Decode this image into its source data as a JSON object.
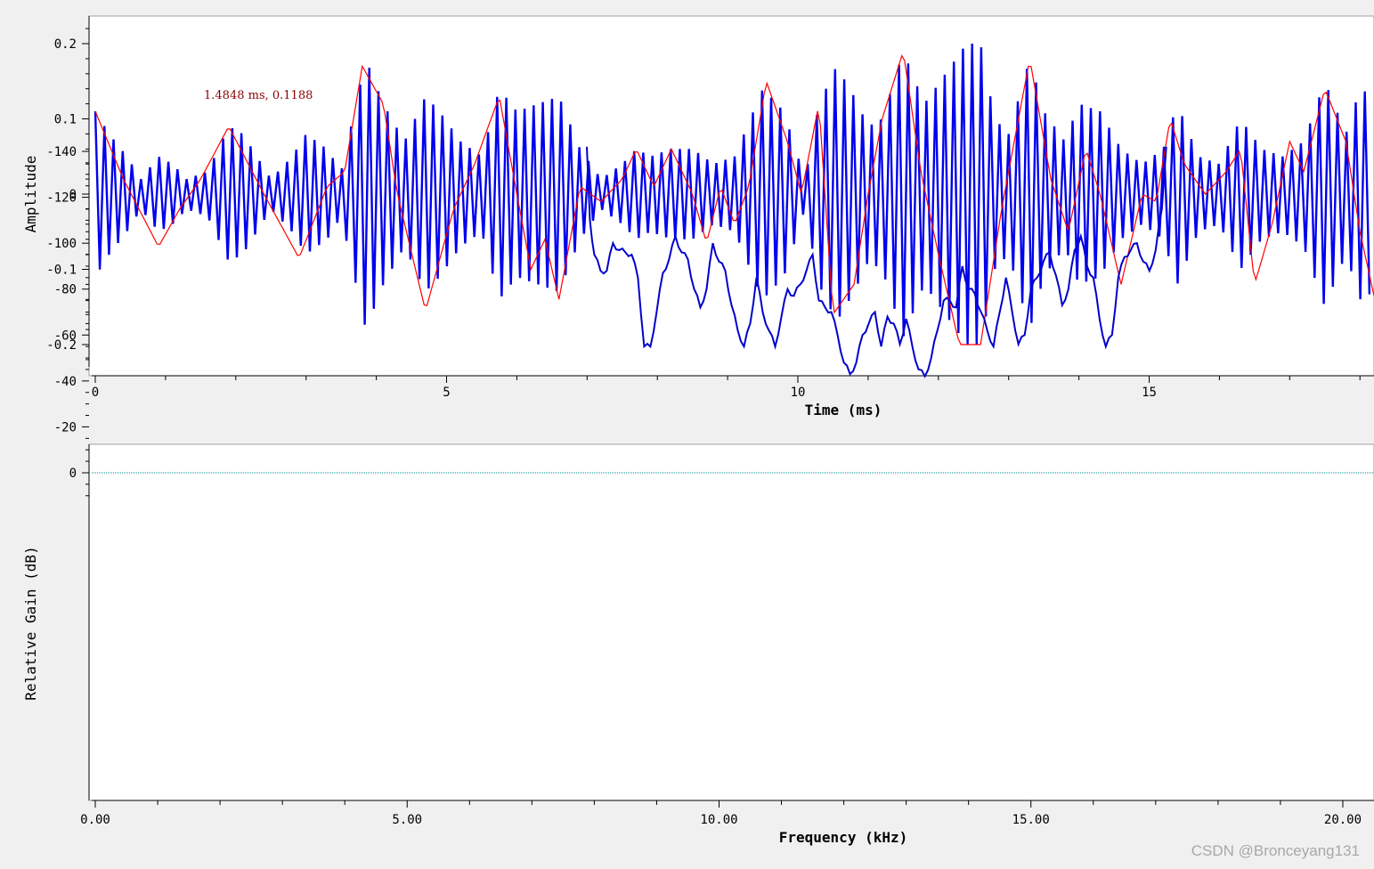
{
  "chart_data": [
    {
      "type": "line",
      "xlabel": "Time (ms)",
      "ylabel": "Amplitude",
      "xlim": [
        0,
        18.2
      ],
      "ylim": [
        -0.235,
        0.235
      ],
      "x_ticks": [
        0,
        5,
        10,
        15
      ],
      "x_tick_labels": [
        "0",
        "5",
        "10",
        "15"
      ],
      "y_ticks": [
        0.2,
        0.1,
        0,
        -0.1,
        -0.2
      ],
      "y_tick_labels": [
        "0.2",
        "0.1",
        "0",
        "-0.1",
        "-0.2"
      ],
      "grid": false,
      "marker_label": "1.4848 ms, 0.1188",
      "series": [
        {
          "color": "#0000ee",
          "carrier_period_ms": 0.13,
          "envelope_ms": [
            [
              0.0,
              0.11
            ],
            [
              0.2,
              0.08
            ],
            [
              0.45,
              0.05
            ],
            [
              0.65,
              0.02
            ],
            [
              0.9,
              0.05
            ],
            [
              1.1,
              0.04
            ],
            [
              1.3,
              0.02
            ],
            [
              1.6,
              0.03
            ],
            [
              1.9,
              0.09
            ],
            [
              2.1,
              0.08
            ],
            [
              2.5,
              0.02
            ],
            [
              2.8,
              0.05
            ],
            [
              3.0,
              0.08
            ],
            [
              3.3,
              0.06
            ],
            [
              3.5,
              0.03
            ],
            [
              3.85,
              0.18
            ],
            [
              4.1,
              0.12
            ],
            [
              4.4,
              0.07
            ],
            [
              4.7,
              0.13
            ],
            [
              4.9,
              0.11
            ],
            [
              5.2,
              0.07
            ],
            [
              5.5,
              0.05
            ],
            [
              5.75,
              0.14
            ],
            [
              6.0,
              0.11
            ],
            [
              6.3,
              0.12
            ],
            [
              6.6,
              0.13
            ],
            [
              6.9,
              0.06
            ],
            [
              7.2,
              0.02
            ],
            [
              7.5,
              0.04
            ],
            [
              7.7,
              0.06
            ],
            [
              7.9,
              0.05
            ],
            [
              8.2,
              0.06
            ],
            [
              8.5,
              0.06
            ],
            [
              8.8,
              0.04
            ],
            [
              9.1,
              0.05
            ],
            [
              9.5,
              0.14
            ],
            [
              9.8,
              0.11
            ],
            [
              10.1,
              0.02
            ],
            [
              10.3,
              0.12
            ],
            [
              10.55,
              0.17
            ],
            [
              10.8,
              0.13
            ],
            [
              11.0,
              0.09
            ],
            [
              11.2,
              0.1
            ],
            [
              11.5,
              0.19
            ],
            [
              11.8,
              0.12
            ],
            [
              12.1,
              0.16
            ],
            [
              12.4,
              0.2
            ],
            [
              12.6,
              0.2
            ],
            [
              12.8,
              0.1
            ],
            [
              13.0,
              0.08
            ],
            [
              13.3,
              0.18
            ],
            [
              13.5,
              0.11
            ],
            [
              13.8,
              0.07
            ],
            [
              14.0,
              0.12
            ],
            [
              14.3,
              0.11
            ],
            [
              14.6,
              0.06
            ],
            [
              14.9,
              0.04
            ],
            [
              15.2,
              0.06
            ],
            [
              15.4,
              0.12
            ],
            [
              15.7,
              0.05
            ],
            [
              16.0,
              0.04
            ],
            [
              16.3,
              0.1
            ],
            [
              16.6,
              0.06
            ],
            [
              16.9,
              0.05
            ],
            [
              17.2,
              0.07
            ],
            [
              17.5,
              0.15
            ],
            [
              17.8,
              0.08
            ],
            [
              18.0,
              0.14
            ],
            [
              18.2,
              0.13
            ]
          ]
        },
        {
          "color": "#ff0000",
          "upper_ms": [
            [
              0.0,
              0.11
            ],
            [
              0.4,
              0.02
            ],
            [
              0.9,
              -0.07
            ],
            [
              1.2,
              -0.02
            ],
            [
              1.5,
              0.02
            ],
            [
              1.9,
              0.09
            ],
            [
              2.4,
              0.0
            ],
            [
              2.9,
              -0.085
            ],
            [
              3.3,
              0.01
            ],
            [
              3.55,
              0.03
            ],
            [
              3.8,
              0.17
            ],
            [
              4.1,
              0.12
            ],
            [
              4.3,
              0.0
            ],
            [
              4.7,
              -0.155
            ],
            [
              5.1,
              -0.02
            ],
            [
              5.4,
              0.04
            ],
            [
              5.75,
              0.13
            ],
            [
              6.0,
              0.0
            ],
            [
              6.2,
              -0.1
            ],
            [
              6.4,
              -0.06
            ],
            [
              6.6,
              -0.14
            ],
            [
              6.9,
              0.01
            ],
            [
              7.2,
              -0.01
            ],
            [
              7.5,
              0.02
            ],
            [
              7.7,
              0.06
            ],
            [
              7.95,
              0.01
            ],
            [
              8.2,
              0.06
            ],
            [
              8.5,
              0.0
            ],
            [
              8.7,
              -0.065
            ],
            [
              8.9,
              0.01
            ],
            [
              9.1,
              -0.04
            ],
            [
              9.3,
              0.01
            ],
            [
              9.55,
              0.15
            ],
            [
              9.85,
              0.07
            ],
            [
              10.05,
              0.0
            ],
            [
              10.3,
              0.12
            ],
            [
              10.5,
              -0.16
            ],
            [
              10.8,
              -0.12
            ],
            [
              11.0,
              0.0
            ],
            [
              11.2,
              0.1
            ],
            [
              11.5,
              0.19
            ],
            [
              11.75,
              0.03
            ],
            [
              12.0,
              -0.08
            ],
            [
              12.3,
              -0.2
            ],
            [
              12.6,
              -0.2
            ],
            [
              12.9,
              -0.02
            ],
            [
              13.1,
              0.08
            ],
            [
              13.3,
              0.18
            ],
            [
              13.6,
              0.02
            ],
            [
              13.85,
              -0.05
            ],
            [
              14.1,
              0.06
            ],
            [
              14.3,
              0.0
            ],
            [
              14.6,
              -0.12
            ],
            [
              14.9,
              0.0
            ],
            [
              15.1,
              -0.01
            ],
            [
              15.3,
              0.1
            ],
            [
              15.5,
              0.04
            ],
            [
              15.8,
              0.0
            ],
            [
              16.1,
              0.03
            ],
            [
              16.3,
              0.06
            ],
            [
              16.5,
              -0.12
            ],
            [
              16.75,
              -0.04
            ],
            [
              17.0,
              0.07
            ],
            [
              17.2,
              0.03
            ],
            [
              17.5,
              0.14
            ],
            [
              17.8,
              0.07
            ],
            [
              18.0,
              -0.05
            ],
            [
              18.2,
              -0.135
            ]
          ]
        }
      ]
    },
    {
      "type": "line",
      "xlabel": "Frequency (kHz)",
      "ylabel": "Relative Gain (dB)",
      "xlim": [
        0,
        20.5
      ],
      "ylim": [
        -142,
        12
      ],
      "x_ticks": [
        0,
        5,
        10,
        15,
        20
      ],
      "x_tick_labels": [
        "0.00",
        "5.00",
        "10.00",
        "15.00",
        "20.00"
      ],
      "y_ticks": [
        0,
        -20,
        -40,
        -60,
        -80,
        -100,
        -120,
        -140
      ],
      "y_tick_labels": [
        "0",
        "-20",
        "-40",
        "-60",
        "-80",
        "-100",
        "-120",
        "-140"
      ],
      "grid": false,
      "reference_line_db": 0,
      "series": [
        {
          "color": "#0000cc",
          "points": [
            [
              7.88,
              -142
            ],
            [
              7.93,
              -110
            ],
            [
              8.0,
              -95
            ],
            [
              8.1,
              -88
            ],
            [
              8.2,
              -88
            ],
            [
              8.3,
              -100
            ],
            [
              8.4,
              -97
            ],
            [
              8.5,
              -96
            ],
            [
              8.6,
              -95
            ],
            [
              8.7,
              -85
            ],
            [
              8.8,
              -55
            ],
            [
              8.9,
              -55
            ],
            [
              9.0,
              -70
            ],
            [
              9.1,
              -87
            ],
            [
              9.2,
              -93
            ],
            [
              9.3,
              -103
            ],
            [
              9.4,
              -96
            ],
            [
              9.5,
              -93
            ],
            [
              9.6,
              -80
            ],
            [
              9.7,
              -72
            ],
            [
              9.8,
              -80
            ],
            [
              9.9,
              -100
            ],
            [
              10.0,
              -92
            ],
            [
              10.1,
              -88
            ],
            [
              10.2,
              -73
            ],
            [
              10.3,
              -62
            ],
            [
              10.4,
              -55
            ],
            [
              10.5,
              -65
            ],
            [
              10.6,
              -85
            ],
            [
              10.7,
              -70
            ],
            [
              10.8,
              -62
            ],
            [
              10.9,
              -55
            ],
            [
              11.0,
              -68
            ],
            [
              11.1,
              -80
            ],
            [
              11.2,
              -77
            ],
            [
              11.3,
              -82
            ],
            [
              11.4,
              -88
            ],
            [
              11.5,
              -95
            ],
            [
              11.6,
              -75
            ],
            [
              11.7,
              -72
            ],
            [
              11.8,
              -70
            ],
            [
              11.9,
              -60
            ],
            [
              12.0,
              -48
            ],
            [
              12.1,
              -43
            ],
            [
              12.2,
              -48
            ],
            [
              12.3,
              -60
            ],
            [
              12.4,
              -65
            ],
            [
              12.5,
              -70
            ],
            [
              12.6,
              -55
            ],
            [
              12.7,
              -68
            ],
            [
              12.8,
              -65
            ],
            [
              12.9,
              -56
            ],
            [
              13.0,
              -67
            ],
            [
              13.1,
              -55
            ],
            [
              13.2,
              -45
            ],
            [
              13.3,
              -42
            ],
            [
              13.4,
              -50
            ],
            [
              13.5,
              -62
            ],
            [
              13.6,
              -75
            ],
            [
              13.7,
              -75
            ],
            [
              13.8,
              -72
            ],
            [
              13.9,
              -90
            ],
            [
              14.0,
              -80
            ],
            [
              14.1,
              -78
            ],
            [
              14.2,
              -70
            ],
            [
              14.3,
              -62
            ],
            [
              14.4,
              -55
            ],
            [
              14.5,
              -70
            ],
            [
              14.6,
              -85
            ],
            [
              14.7,
              -70
            ],
            [
              14.8,
              -56
            ],
            [
              14.9,
              -60
            ],
            [
              15.0,
              -80
            ],
            [
              15.1,
              -85
            ],
            [
              15.2,
              -92
            ],
            [
              15.3,
              -96
            ],
            [
              15.4,
              -86
            ],
            [
              15.5,
              -73
            ],
            [
              15.6,
              -80
            ],
            [
              15.7,
              -97
            ],
            [
              15.8,
              -103
            ],
            [
              15.9,
              -90
            ],
            [
              16.0,
              -85
            ],
            [
              16.1,
              -67
            ],
            [
              16.2,
              -55
            ],
            [
              16.3,
              -60
            ],
            [
              16.4,
              -85
            ],
            [
              16.5,
              -94
            ],
            [
              16.6,
              -97
            ],
            [
              16.7,
              -100
            ],
            [
              16.8,
              -92
            ],
            [
              16.9,
              -88
            ],
            [
              17.0,
              -97
            ],
            [
              17.1,
              -115
            ],
            [
              17.17,
              -142
            ]
          ]
        }
      ]
    }
  ],
  "watermark": "CSDN @Bronceyang131"
}
